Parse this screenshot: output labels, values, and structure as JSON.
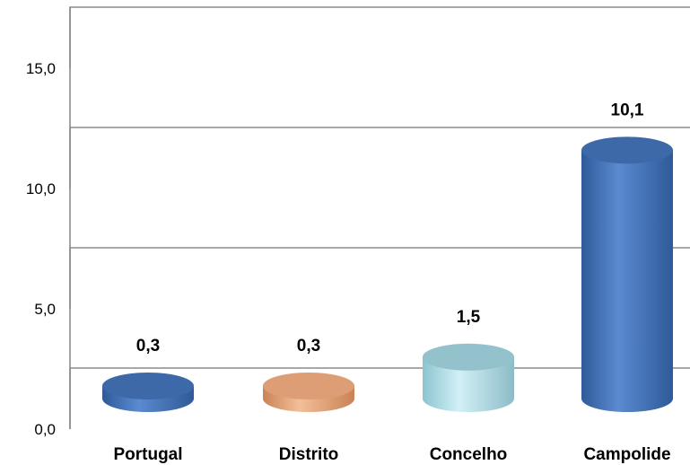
{
  "chart_data": {
    "type": "bar",
    "style": "3d-cylinder",
    "categories": [
      "Portugal",
      "Distrito",
      "Concelho",
      "Campolide"
    ],
    "values": [
      0.3,
      0.3,
      1.5,
      10.1
    ],
    "data_labels": [
      "0,3",
      "0,3",
      "1,5",
      "10,1"
    ],
    "ylim": [
      0,
      15
    ],
    "yticks": [
      0,
      5,
      10,
      15
    ],
    "ytick_labels": [
      "0,0",
      "5,0",
      "10,0",
      "15,0"
    ],
    "grid": true,
    "legend": "none",
    "colors": {
      "Portugal": "#4a76b8",
      "Distrito": "#e8a77a",
      "Concelho": "#a9dce6",
      "Campolide": "#4a76b8"
    },
    "title": "",
    "xlabel": "",
    "ylabel": ""
  }
}
